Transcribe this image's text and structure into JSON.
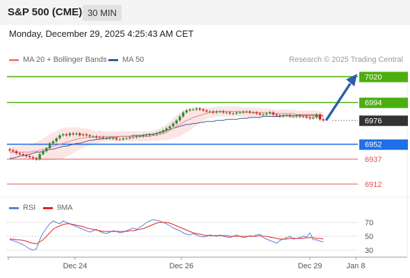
{
  "header": {
    "title": "S&P 500 (CME)",
    "interval": "30 MIN"
  },
  "timestamp": "Monday, December 29, 2025 4:25:43 AM CET",
  "legend": {
    "ma20": "MA 20 + Bollinger Bands",
    "ma50": "MA 50",
    "rsi": "RSI",
    "ma9": "9MA"
  },
  "research": "Research © 2025 Trading Central",
  "colors": {
    "ma20": "#f08080",
    "ma50": "#3a5a8f",
    "bullish": "#2e8b2e",
    "bearish": "#cc2222",
    "resistance": "#4caf10",
    "support_blue": "#1e6fe8",
    "support_red": "#e05050",
    "arrow": "#2d5fa8",
    "last": "#333333",
    "rsi": "#5b7fd6",
    "rsi_ma": "#e02020"
  },
  "chart_data": {
    "type": "candlestick",
    "x_labels": [
      "Dec 24",
      "Dec 26",
      "Dec 29",
      "Jan 8"
    ],
    "price_range": [
      6900,
      7030
    ],
    "levels": [
      {
        "value": 7020,
        "label": "7020",
        "kind": "resistance"
      },
      {
        "value": 6994,
        "label": "6994",
        "kind": "resistance"
      },
      {
        "value": 6976,
        "label": "6976",
        "kind": "last"
      },
      {
        "value": 6952,
        "label": "6952",
        "kind": "pivot"
      },
      {
        "value": 6937,
        "label": "6937",
        "kind": "support"
      },
      {
        "value": 6912,
        "label": "6912",
        "kind": "support"
      }
    ],
    "arrow": {
      "from": 6976,
      "to": 7020
    },
    "closes": [
      6946,
      6945,
      6943,
      6942,
      6941,
      6940,
      6939,
      6938,
      6937,
      6942,
      6945,
      6948,
      6953,
      6955,
      6958,
      6961,
      6962,
      6961,
      6963,
      6962,
      6963,
      6961,
      6962,
      6961,
      6960,
      6960,
      6959,
      6959,
      6958,
      6958,
      6958,
      6958,
      6957,
      6957,
      6958,
      6958,
      6959,
      6959,
      6960,
      6960,
      6961,
      6961,
      6962,
      6962,
      6963,
      6964,
      6966,
      6968,
      6970,
      6973,
      6976,
      6980,
      6984,
      6986,
      6987,
      6987,
      6988,
      6987,
      6986,
      6985,
      6985,
      6984,
      6985,
      6985,
      6984,
      6984,
      6983,
      6983,
      6984,
      6984,
      6985,
      6985,
      6984,
      6984,
      6983,
      6982,
      6982,
      6983,
      6984,
      6982,
      6981,
      6980,
      6981,
      6981,
      6980,
      6980,
      6981,
      6980,
      6980,
      6979,
      6978,
      6979,
      6982,
      6977,
      6976
    ],
    "ma20": [
      6944,
      6944,
      6944,
      6944,
      6944,
      6944,
      6944,
      6945,
      6945,
      6946,
      6947,
      6948,
      6949,
      6950,
      6951,
      6952,
      6953,
      6954,
      6955,
      6956,
      6957,
      6958,
      6958,
      6959,
      6959,
      6959,
      6959,
      6960,
      6960,
      6960,
      6960,
      6960,
      6960,
      6960,
      6960,
      6960,
      6960,
      6960,
      6960,
      6960,
      6960,
      6960,
      6960,
      6961,
      6961,
      6962,
      6963,
      6964,
      6966,
      6968,
      6970,
      6972,
      6974,
      6976,
      6977,
      6979,
      6980,
      6981,
      6982,
      6983,
      6984,
      6984,
      6985,
      6985,
      6985,
      6985,
      6985,
      6985,
      6985,
      6985,
      6984,
      6984,
      6984,
      6984,
      6984,
      6984,
      6984,
      6984,
      6984,
      6983,
      6983,
      6983,
      6983,
      6983,
      6983,
      6983,
      6982,
      6982,
      6982,
      6982,
      6982,
      6982,
      6982,
      6981,
      6980
    ],
    "ma50": [
      6938,
      6938,
      6939,
      6940,
      6941,
      6941,
      6942,
      6943,
      6944,
      6944,
      6945,
      6946,
      6947,
      6947,
      6948,
      6949,
      6950,
      6950,
      6951,
      6952,
      6953,
      6953,
      6954,
      6955,
      6956,
      6956,
      6957,
      6957,
      6958,
      6958,
      6959,
      6959,
      6959,
      6960,
      6960,
      6960,
      6960,
      6961,
      6961,
      6961,
      6961,
      6962,
      6962,
      6962,
      6963,
      6964,
      6965,
      6966,
      6967,
      6968,
      6969,
      6970,
      6971,
      6972,
      6972,
      6973,
      6973,
      6974,
      6974,
      6975,
      6975,
      6975,
      6976,
      6976,
      6976,
      6977,
      6977,
      6977,
      6977,
      6978,
      6978,
      6978,
      6979,
      6979,
      6979,
      6979,
      6980,
      6980,
      6980,
      6980,
      6980,
      6980,
      6981,
      6981,
      6981,
      6981,
      6981,
      6981,
      6981,
      6981,
      6981,
      6981,
      6981,
      6981,
      6981
    ],
    "band_width": [
      6,
      6,
      6,
      6,
      7,
      7,
      7,
      8,
      9,
      10,
      11,
      12,
      13,
      14,
      14,
      15,
      15,
      15,
      14,
      13,
      12,
      11,
      10,
      9,
      8,
      7,
      6,
      6,
      5,
      5,
      5,
      5,
      5,
      5,
      5,
      5,
      5,
      5,
      5,
      5,
      5,
      5,
      5,
      5,
      6,
      6,
      7,
      8,
      9,
      10,
      11,
      12,
      12,
      12,
      11,
      10,
      9,
      8,
      7,
      6,
      5,
      5,
      5,
      5,
      5,
      5,
      5,
      5,
      5,
      5,
      5,
      5,
      5,
      5,
      5,
      5,
      4,
      4,
      4,
      4,
      4,
      4,
      4,
      4,
      4,
      4,
      4,
      4,
      4,
      4,
      4,
      4,
      4,
      4,
      4
    ],
    "rsi": {
      "ticks": [
        70,
        50,
        30
      ],
      "range": [
        20,
        80
      ],
      "values": [
        45,
        44,
        42,
        40,
        38,
        35,
        32,
        30,
        32,
        45,
        55,
        62,
        68,
        72,
        70,
        68,
        72,
        70,
        68,
        66,
        64,
        62,
        60,
        58,
        56,
        58,
        60,
        57,
        55,
        54,
        56,
        58,
        57,
        55,
        56,
        58,
        60,
        62,
        60,
        63,
        66,
        70,
        72,
        74,
        73,
        72,
        70,
        68,
        65,
        62,
        60,
        58,
        55,
        53,
        52,
        54,
        52,
        50,
        49,
        50,
        52,
        51,
        50,
        52,
        50,
        49,
        48,
        50,
        52,
        50,
        48,
        49,
        51,
        50,
        52,
        53,
        48,
        46,
        44,
        42,
        40,
        44,
        46,
        48,
        50,
        46,
        47,
        48,
        50,
        49,
        55,
        45,
        45,
        43,
        42
      ],
      "ma": [
        46,
        46,
        45,
        45,
        44,
        43,
        41,
        40,
        39,
        42,
        45,
        50,
        55,
        60,
        63,
        65,
        67,
        68,
        68,
        67,
        66,
        65,
        64,
        62,
        61,
        60,
        59,
        58,
        57,
        57,
        57,
        57,
        57,
        57,
        57,
        57,
        58,
        58,
        59,
        60,
        61,
        63,
        65,
        67,
        69,
        70,
        70,
        70,
        69,
        67,
        65,
        63,
        61,
        59,
        57,
        55,
        54,
        53,
        52,
        51,
        51,
        51,
        51,
        51,
        51,
        51,
        50,
        50,
        50,
        50,
        50,
        50,
        50,
        50,
        50,
        51,
        50,
        50,
        49,
        48,
        47,
        46,
        46,
        46,
        47,
        47,
        47,
        47,
        47,
        48,
        48,
        48,
        47,
        47,
        46
      ]
    }
  }
}
